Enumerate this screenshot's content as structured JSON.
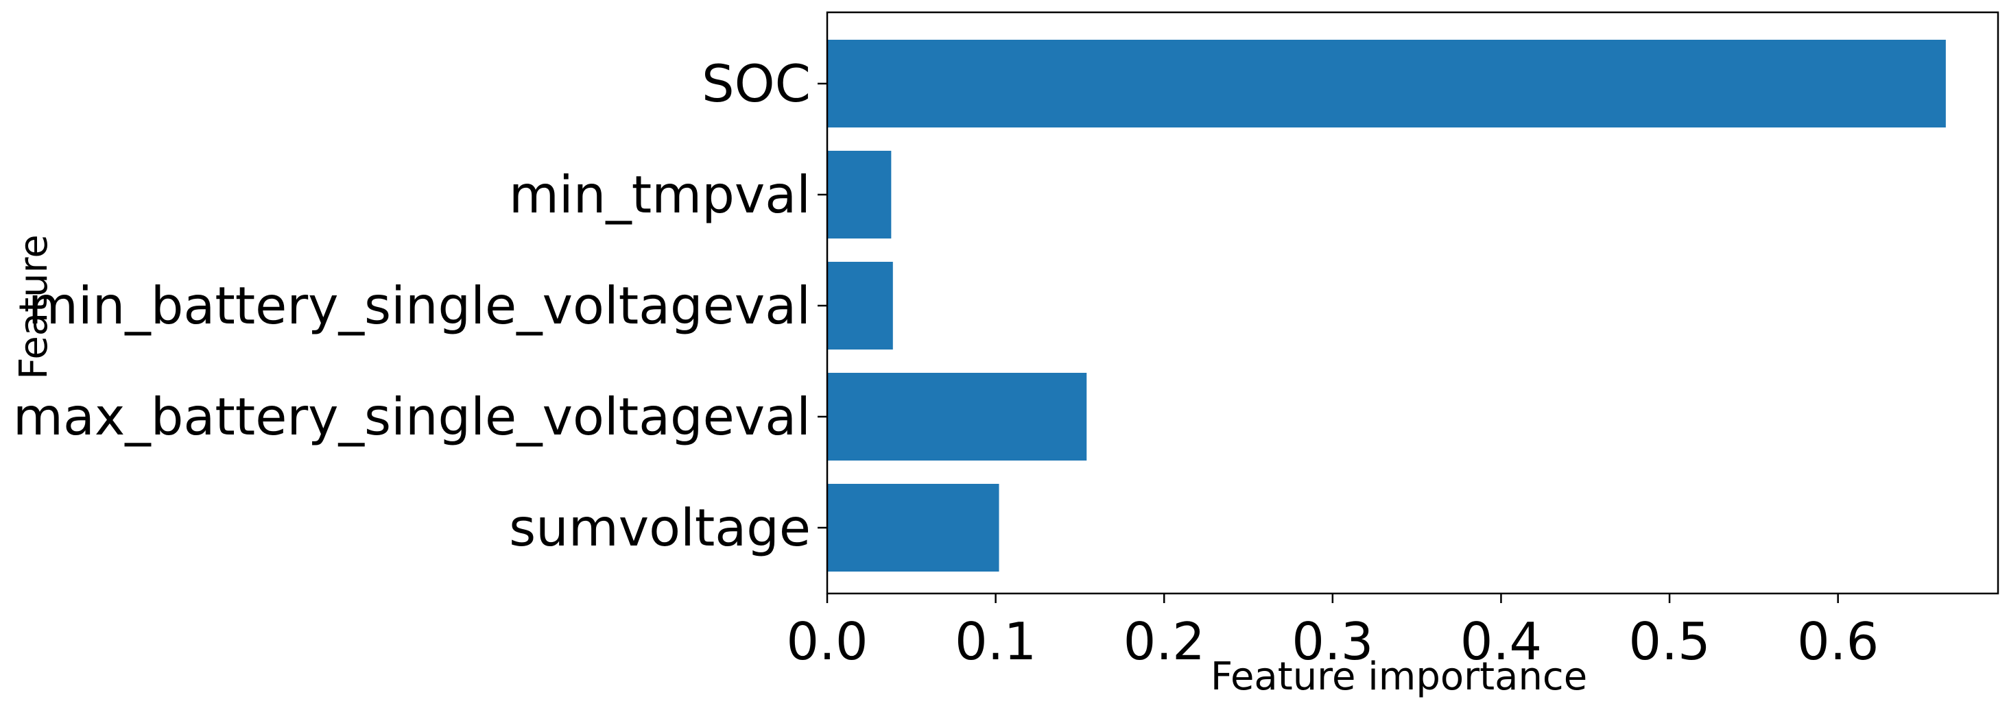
{
  "chart_data": {
    "type": "bar",
    "orientation": "horizontal",
    "title": "",
    "xlabel": "Feature importance",
    "ylabel": "Feature",
    "categories": [
      "SOC",
      "min_tmpval",
      "min_battery_single_voltageval",
      "max_battery_single_voltageval",
      "sumvoltage"
    ],
    "values": [
      0.664,
      0.038,
      0.039,
      0.154,
      0.102
    ],
    "xlim": [
      0,
      0.695
    ],
    "xticks": [
      0.0,
      0.1,
      0.2,
      0.3,
      0.4,
      0.5,
      0.6
    ],
    "xtick_labels": [
      "0.0",
      "0.1",
      "0.2",
      "0.3",
      "0.4",
      "0.5",
      "0.6"
    ],
    "grid": false,
    "legend": "none",
    "bar_color": "#1f77b4"
  }
}
